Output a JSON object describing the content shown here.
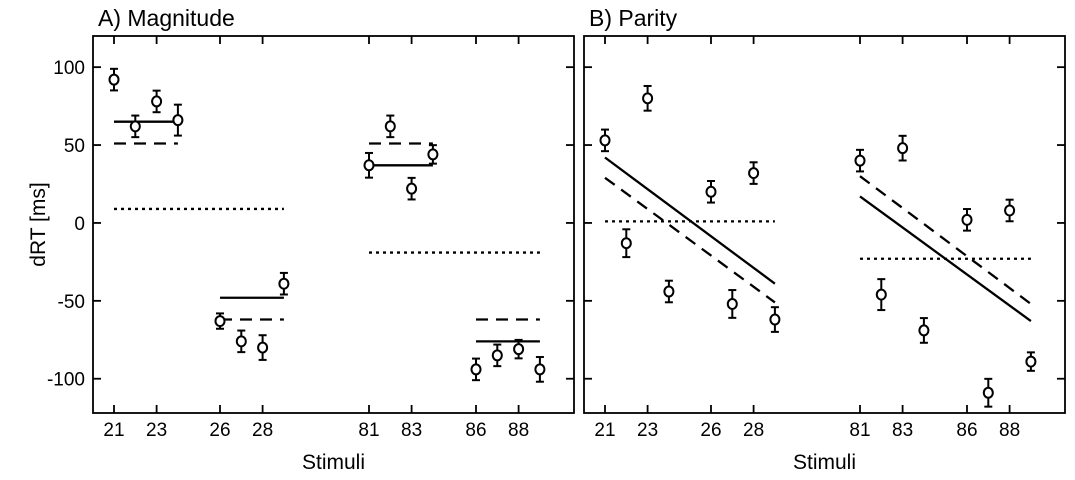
{
  "chart_data": [
    {
      "type": "scatter",
      "title": "A) Magnitude",
      "xlabel": "Stimuli",
      "ylabel": "dRT [ms]",
      "ylim": [
        -122,
        120
      ],
      "yticks": [
        100,
        50,
        0,
        -50,
        -100
      ],
      "x_tick_labels": [
        {
          "x": 21,
          "label": "21"
        },
        {
          "x": 23,
          "label": "23"
        },
        {
          "x": 26,
          "label": "26"
        },
        {
          "x": 28,
          "label": "28"
        },
        {
          "x": 81,
          "label": "81"
        },
        {
          "x": 83,
          "label": "83"
        },
        {
          "x": 86,
          "label": "86"
        },
        {
          "x": 88,
          "label": "88"
        }
      ],
      "grid": false,
      "points": [
        {
          "x": 21,
          "y": 92,
          "err": 5
        },
        {
          "x": 22,
          "y": 62,
          "err": 5
        },
        {
          "x": 23,
          "y": 78,
          "err": 5
        },
        {
          "x": 24,
          "y": 66,
          "err": 8
        },
        {
          "x": 26,
          "y": -63,
          "err": 3
        },
        {
          "x": 27,
          "y": -76,
          "err": 5
        },
        {
          "x": 28,
          "y": -80,
          "err": 6
        },
        {
          "x": 29,
          "y": -39,
          "err": 5
        },
        {
          "x": 81,
          "y": 37,
          "err": 6
        },
        {
          "x": 82,
          "y": 62,
          "err": 5
        },
        {
          "x": 83,
          "y": 22,
          "err": 5
        },
        {
          "x": 84,
          "y": 44,
          "err": 4
        },
        {
          "x": 86,
          "y": -94,
          "err": 5
        },
        {
          "x": 87,
          "y": -85,
          "err": 5
        },
        {
          "x": 88,
          "y": -81,
          "err": 4
        },
        {
          "x": 89,
          "y": -94,
          "err": 6
        }
      ],
      "lines": [
        {
          "style": "solid",
          "segments": [
            [
              21,
              65,
              24,
              65
            ],
            [
              26,
              -48,
              29,
              -48
            ],
            [
              81,
              37,
              84,
              37
            ],
            [
              86,
              -76,
              89,
              -76
            ]
          ]
        },
        {
          "style": "dashed",
          "segments": [
            [
              21,
              51,
              24,
              51
            ],
            [
              26,
              -62,
              29,
              -62
            ],
            [
              81,
              51,
              84,
              51
            ],
            [
              86,
              -62,
              89,
              -62
            ]
          ]
        },
        {
          "style": "dotted",
          "segments": [
            [
              21,
              9,
              29,
              9
            ],
            [
              81,
              -19,
              89,
              -19
            ]
          ]
        }
      ]
    },
    {
      "type": "scatter",
      "title": "B) Parity",
      "xlabel": "Stimuli",
      "ylabel": "",
      "ylim": [
        -122,
        120
      ],
      "yticks": [
        100,
        50,
        0,
        -50,
        -100
      ],
      "x_tick_labels": [
        {
          "x": 21,
          "label": "21"
        },
        {
          "x": 23,
          "label": "23"
        },
        {
          "x": 26,
          "label": "26"
        },
        {
          "x": 28,
          "label": "28"
        },
        {
          "x": 81,
          "label": "81"
        },
        {
          "x": 83,
          "label": "83"
        },
        {
          "x": 86,
          "label": "86"
        },
        {
          "x": 88,
          "label": "88"
        }
      ],
      "grid": false,
      "points": [
        {
          "x": 21,
          "y": 53,
          "err": 5
        },
        {
          "x": 22,
          "y": -13,
          "err": 7
        },
        {
          "x": 23,
          "y": 80,
          "err": 6
        },
        {
          "x": 24,
          "y": -44,
          "err": 5
        },
        {
          "x": 26,
          "y": 20,
          "err": 5
        },
        {
          "x": 27,
          "y": -52,
          "err": 7
        },
        {
          "x": 28,
          "y": 32,
          "err": 5
        },
        {
          "x": 29,
          "y": -62,
          "err": 6
        },
        {
          "x": 81,
          "y": 40,
          "err": 5
        },
        {
          "x": 82,
          "y": -46,
          "err": 8
        },
        {
          "x": 83,
          "y": 48,
          "err": 6
        },
        {
          "x": 84,
          "y": -69,
          "err": 6
        },
        {
          "x": 86,
          "y": 2,
          "err": 5
        },
        {
          "x": 87,
          "y": -109,
          "err": 7
        },
        {
          "x": 88,
          "y": 8,
          "err": 5
        },
        {
          "x": 89,
          "y": -89,
          "err": 4
        }
      ],
      "lines": [
        {
          "style": "solid",
          "segments": [
            [
              21,
              42,
              29,
              -39
            ],
            [
              81,
              17,
              89,
              -63
            ]
          ]
        },
        {
          "style": "dashed",
          "segments": [
            [
              21,
              29,
              29,
              -51
            ],
            [
              81,
              30,
              89,
              -52
            ]
          ]
        },
        {
          "style": "dotted",
          "segments": [
            [
              21,
              1,
              29,
              1
            ],
            [
              81,
              -23,
              89,
              -23
            ]
          ]
        }
      ]
    }
  ]
}
